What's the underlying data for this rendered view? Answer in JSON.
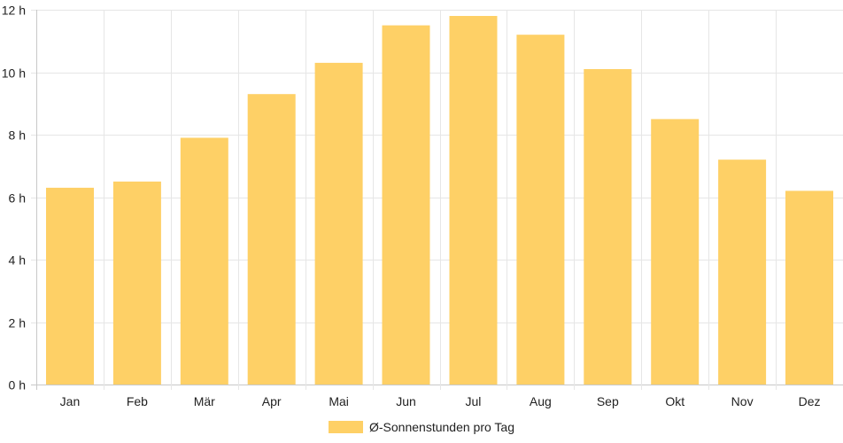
{
  "chart_data": {
    "type": "bar",
    "categories": [
      "Jan",
      "Feb",
      "Mär",
      "Apr",
      "Mai",
      "Jun",
      "Jul",
      "Aug",
      "Sep",
      "Okt",
      "Nov",
      "Dez"
    ],
    "series": [
      {
        "name": "Ø-Sonnenstunden pro Tag",
        "values": [
          6.3,
          6.5,
          7.9,
          9.3,
          10.3,
          11.5,
          11.8,
          11.2,
          10.1,
          8.5,
          7.2,
          6.2
        ],
        "color": "#fed066"
      }
    ],
    "y_ticks": [
      {
        "value": 0,
        "label": "0 h"
      },
      {
        "value": 2,
        "label": "2 h"
      },
      {
        "value": 4,
        "label": "4 h"
      },
      {
        "value": 6,
        "label": "6 h"
      },
      {
        "value": 8,
        "label": "8 h"
      },
      {
        "value": 10,
        "label": "10 h"
      },
      {
        "value": 12,
        "label": "12 h"
      }
    ],
    "ylim": [
      0,
      12
    ],
    "grid": true,
    "legend_position": "bottom-center"
  }
}
